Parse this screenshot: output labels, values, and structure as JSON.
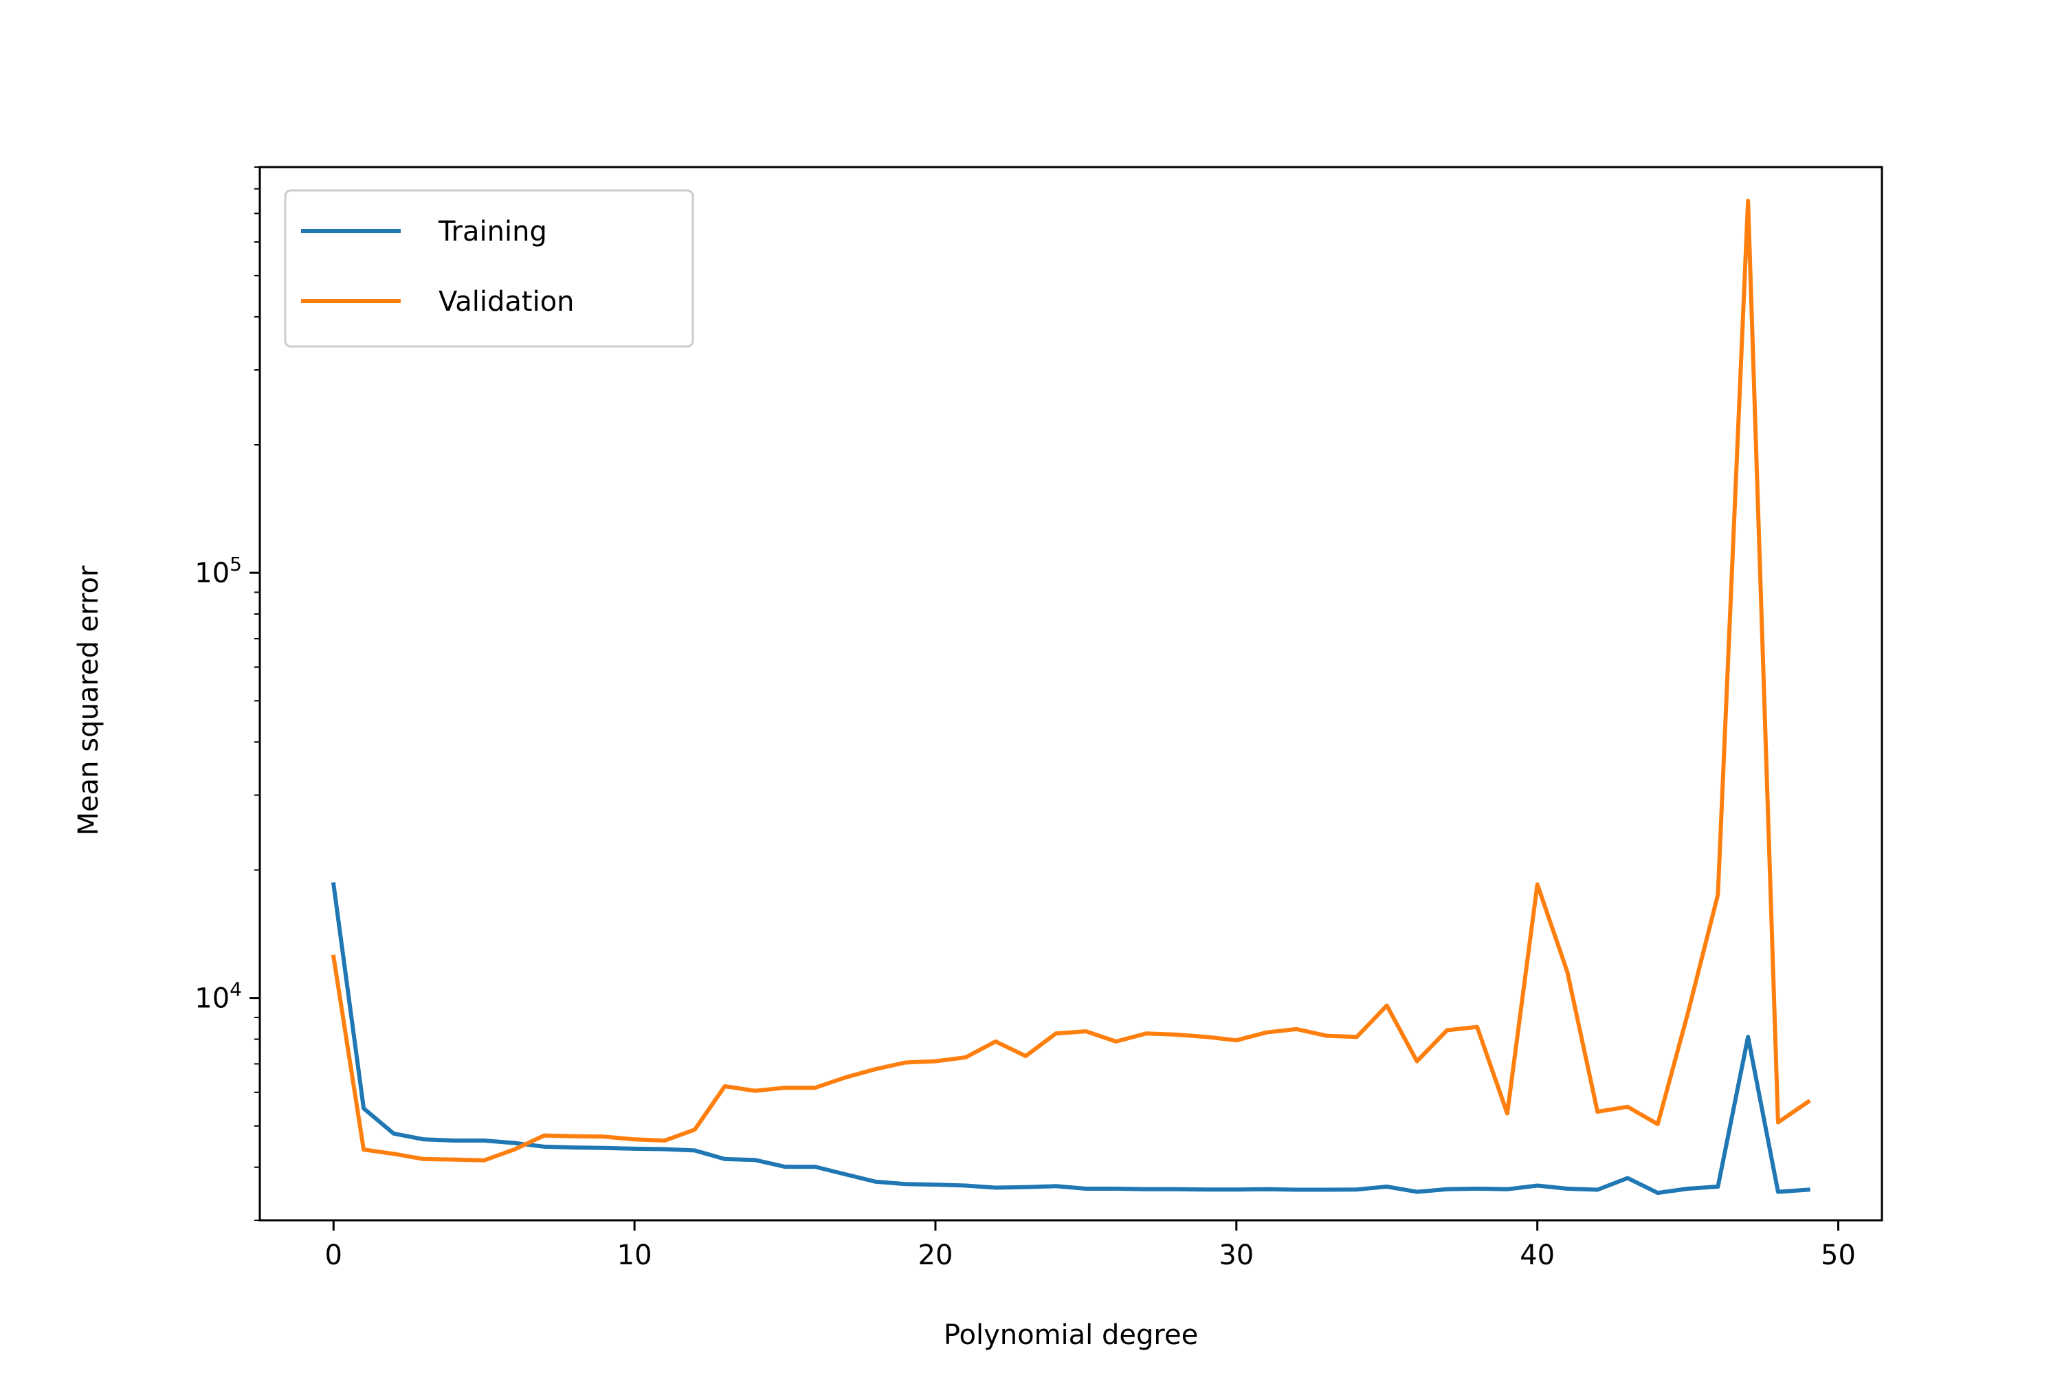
{
  "chart_data": {
    "type": "line",
    "title": "",
    "xlabel": "Polynomial degree",
    "ylabel": "Mean squared error",
    "xscale": "linear",
    "yscale": "log",
    "xlim": [
      -2.45,
      51.45
    ],
    "ylim": [
      3000,
      900000
    ],
    "xticks": [
      0,
      10,
      20,
      30,
      40,
      50
    ],
    "xtick_labels": [
      "0",
      "10",
      "20",
      "30",
      "40",
      "50"
    ],
    "yticks": [
      10000,
      100000
    ],
    "ytick_labels": [
      {
        "base": "10",
        "exp": "4"
      },
      {
        "base": "10",
        "exp": "5"
      }
    ],
    "grid": false,
    "legend": "top-left",
    "x": [
      0,
      1,
      2,
      3,
      4,
      5,
      6,
      7,
      8,
      9,
      10,
      11,
      12,
      13,
      14,
      15,
      16,
      17,
      18,
      19,
      20,
      21,
      22,
      23,
      24,
      25,
      26,
      27,
      28,
      29,
      30,
      31,
      32,
      33,
      34,
      35,
      36,
      37,
      38,
      39,
      40,
      41,
      42,
      43,
      44,
      45,
      46,
      47,
      48,
      49
    ],
    "series": [
      {
        "name": "Training",
        "color": "#1f77b4",
        "values": [
          18500,
          5500,
          4800,
          4650,
          4620,
          4620,
          4560,
          4470,
          4450,
          4440,
          4420,
          4410,
          4380,
          4180,
          4160,
          4010,
          4010,
          3850,
          3700,
          3650,
          3640,
          3620,
          3580,
          3590,
          3610,
          3560,
          3560,
          3550,
          3550,
          3545,
          3545,
          3550,
          3540,
          3540,
          3545,
          3600,
          3500,
          3550,
          3560,
          3550,
          3620,
          3560,
          3540,
          3770,
          3480,
          3560,
          3600,
          8100,
          3500,
          3540
        ]
      },
      {
        "name": "Validation",
        "color": "#ff7f0e",
        "values": [
          12500,
          4400,
          4300,
          4180,
          4170,
          4150,
          4400,
          4750,
          4730,
          4720,
          4650,
          4620,
          4900,
          6200,
          6050,
          6150,
          6150,
          6500,
          6800,
          7050,
          7100,
          7250,
          7900,
          7300,
          8250,
          8350,
          7900,
          8250,
          8200,
          8100,
          7950,
          8300,
          8450,
          8150,
          8100,
          9600,
          7100,
          8400,
          8550,
          5350,
          18500,
          11500,
          5400,
          5550,
          5050,
          9200,
          17500,
          750000,
          5100,
          5700
        ]
      }
    ]
  }
}
